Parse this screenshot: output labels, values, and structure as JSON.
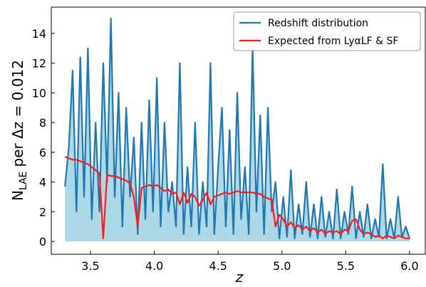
{
  "chart_data": {
    "type": "line",
    "xlabel": "z",
    "ylabel": {
      "main": "N",
      "sub": "LAE",
      "rest": "per Δz = 0.012"
    },
    "x": [
      3.3,
      3.33,
      3.36,
      3.39,
      3.42,
      3.45,
      3.48,
      3.51,
      3.54,
      3.57,
      3.6,
      3.63,
      3.66,
      3.69,
      3.72,
      3.75,
      3.78,
      3.81,
      3.84,
      3.87,
      3.9,
      3.93,
      3.96,
      3.99,
      4.02,
      4.05,
      4.08,
      4.11,
      4.14,
      4.17,
      4.2,
      4.23,
      4.26,
      4.29,
      4.32,
      4.35,
      4.38,
      4.41,
      4.44,
      4.47,
      4.5,
      4.53,
      4.56,
      4.59,
      4.62,
      4.65,
      4.68,
      4.71,
      4.74,
      4.77,
      4.8,
      4.83,
      4.86,
      4.89,
      4.92,
      4.95,
      4.98,
      5.01,
      5.04,
      5.07,
      5.1,
      5.13,
      5.16,
      5.19,
      5.22,
      5.25,
      5.28,
      5.31,
      5.34,
      5.37,
      5.4,
      5.43,
      5.46,
      5.49,
      5.52,
      5.55,
      5.58,
      5.61,
      5.64,
      5.67,
      5.7,
      5.73,
      5.76,
      5.79,
      5.82,
      5.85,
      5.88,
      5.91,
      5.94,
      5.97,
      6.0
    ],
    "series": [
      {
        "name": "Redshift distribution",
        "color": "#1f77b4",
        "fill_color": "#add8e6",
        "values": [
          3.7,
          6.3,
          11.5,
          2.0,
          12.4,
          3.0,
          13.0,
          1.5,
          8.0,
          2.0,
          12.0,
          4.0,
          15.0,
          3.0,
          10.0,
          1.0,
          9.0,
          3.0,
          7.0,
          0.5,
          8.0,
          1.5,
          9.5,
          2.0,
          11.0,
          1.0,
          8.0,
          2.0,
          4.0,
          1.0,
          12.0,
          0.5,
          5.0,
          1.0,
          8.0,
          0.5,
          4.0,
          1.0,
          12.0,
          0.5,
          5.0,
          9.0,
          1.0,
          7.5,
          0.5,
          10.0,
          1.5,
          5.0,
          0.5,
          13.0,
          2.0,
          8.5,
          0.5,
          9.0,
          2.0,
          4.0,
          0.2,
          3.0,
          0.3,
          4.8,
          0.2,
          2.5,
          0.5,
          4.0,
          0.3,
          2.5,
          0.2,
          3.0,
          0.3,
          2.0,
          0.2,
          3.5,
          0.2,
          2.0,
          0.5,
          3.7,
          0.2,
          2.0,
          0.3,
          2.5,
          0.2,
          1.5,
          0.3,
          5.2,
          0.2,
          1.5,
          0.2,
          3.0,
          0.3,
          1.0,
          0.2
        ]
      },
      {
        "name": "Expected from LyαLF & SF",
        "color": "#ff1a1a",
        "values": [
          5.7,
          5.6,
          5.5,
          5.5,
          5.4,
          5.3,
          5.2,
          5.0,
          4.8,
          4.6,
          0.2,
          4.5,
          4.4,
          4.4,
          4.3,
          4.2,
          4.1,
          3.9,
          3.0,
          1.0,
          3.6,
          3.7,
          3.8,
          3.7,
          3.8,
          3.6,
          3.4,
          3.5,
          3.2,
          3.3,
          2.5,
          3.3,
          2.6,
          3.2,
          3.0,
          2.4,
          2.8,
          3.3,
          2.5,
          3.0,
          3.1,
          3.2,
          3.3,
          3.2,
          3.3,
          3.4,
          3.3,
          3.3,
          3.3,
          3.3,
          3.2,
          3.2,
          3.0,
          2.9,
          2.8,
          1.0,
          1.8,
          1.5,
          1.0,
          1.3,
          0.9,
          1.1,
          0.8,
          1.0,
          0.7,
          0.9,
          0.6,
          0.8,
          0.5,
          0.7,
          0.6,
          0.7,
          0.5,
          0.8,
          0.7,
          1.4,
          1.5,
          0.8,
          0.5,
          0.6,
          0.5,
          0.3,
          0.4,
          0.2,
          0.4,
          0.3,
          0.2,
          0.4,
          0.3,
          0.2,
          0.2
        ]
      }
    ],
    "xlim": [
      3.193,
      6.123
    ],
    "ylim": [
      -0.86,
      15.77
    ],
    "xticks": [
      3.5,
      {
        "value": 4,
        "label": "4.0"
      },
      4.5,
      {
        "value": 5,
        "label": "5.0"
      },
      5.5,
      {
        "value": 6,
        "label": "6.0"
      }
    ],
    "yticks": [
      0,
      2,
      4,
      6,
      8,
      10,
      12,
      14
    ],
    "legend": "upper right"
  }
}
